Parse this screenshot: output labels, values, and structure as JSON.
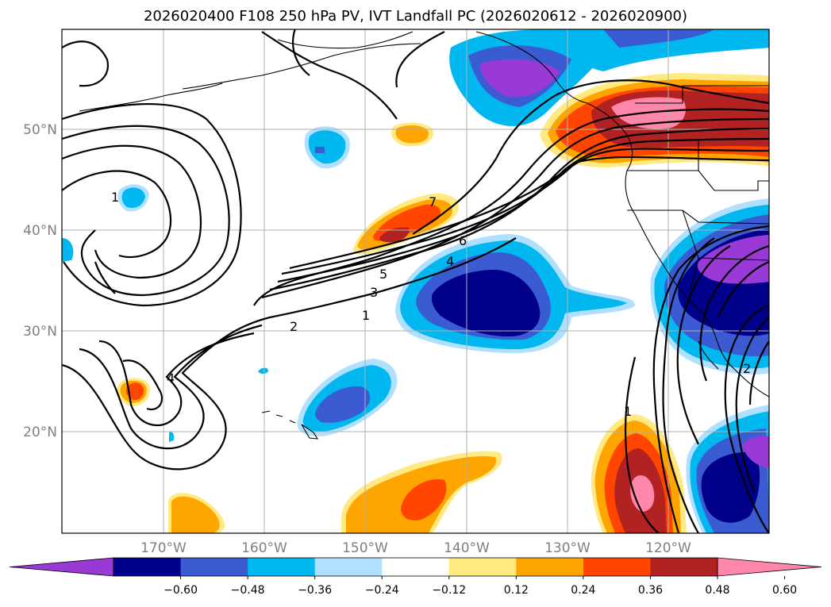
{
  "title": "2026020400 F108 250 hPa PV, IVT Landfall PC (2026020612 - 2026020900)",
  "lat_labels": [
    "50°N",
    "40°N",
    "30°N",
    "20°N"
  ],
  "lon_labels": [
    "170°W",
    "160°W",
    "150°W",
    "140°W",
    "130°W",
    "120°W"
  ],
  "contour_labels": [
    "1",
    "2",
    "3",
    "4",
    "5",
    "6",
    "7",
    "1",
    "4",
    "1",
    "2"
  ],
  "colorbar": {
    "colors": [
      "#9a3ad6",
      "#00008b",
      "#3a5bd1",
      "#00b7f0",
      "#b0e0ff",
      "#ffffff",
      "#ffe980",
      "#ffa500",
      "#ff4500",
      "#b22222",
      "#ff88aa"
    ],
    "tick_labels": [
      "−0.60",
      "−0.48",
      "−0.36",
      "−0.24",
      "−0.12",
      "0.12",
      "0.24",
      "0.36",
      "0.48",
      "0.60"
    ]
  }
}
